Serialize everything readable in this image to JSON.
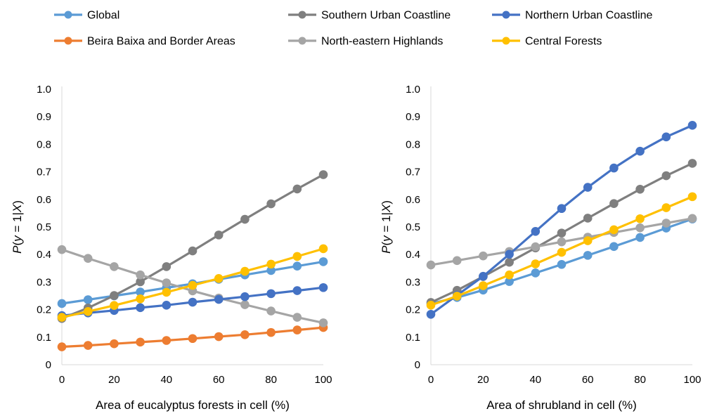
{
  "chart_data": [
    {
      "type": "line",
      "xlabel": "Area of eucalyptus forests in cell (%)",
      "ylabel": "P(y = 1|X)",
      "xlim": [
        0,
        100
      ],
      "ylim": [
        0,
        1.0
      ],
      "x_ticks": [
        "0",
        "20",
        "40",
        "60",
        "80",
        "100"
      ],
      "y_ticks": [
        "0",
        "0.1",
        "0.2",
        "0.3",
        "0.4",
        "0.5",
        "0.6",
        "0.7",
        "0.8",
        "0.9",
        "1.0"
      ],
      "x": [
        0,
        10,
        20,
        30,
        40,
        50,
        60,
        70,
        80,
        90,
        100
      ],
      "grid": false,
      "series": [
        {
          "name": "Global",
          "color": "#5B9BD5",
          "values": [
            0.222,
            0.236,
            0.25,
            0.264,
            0.279,
            0.294,
            0.31,
            0.326,
            0.342,
            0.358,
            0.374
          ]
        },
        {
          "name": "Beira Baixa and Border Areas",
          "color": "#ED7D31",
          "values": [
            0.065,
            0.07,
            0.076,
            0.082,
            0.088,
            0.095,
            0.102,
            0.109,
            0.117,
            0.126,
            0.135
          ]
        },
        {
          "name": "Southern Urban Coastline",
          "color": "#7F7F7F",
          "values": [
            0.168,
            0.206,
            0.251,
            0.301,
            0.356,
            0.413,
            0.471,
            0.528,
            0.584,
            0.638,
            0.69
          ]
        },
        {
          "name": "North-eastern Highlands",
          "color": "#A5A5A5",
          "values": [
            0.418,
            0.386,
            0.356,
            0.326,
            0.297,
            0.268,
            0.242,
            0.218,
            0.195,
            0.172,
            0.152
          ]
        },
        {
          "name": "Northern Urban Coastline",
          "color": "#4472C4",
          "values": [
            0.178,
            0.188,
            0.197,
            0.207,
            0.216,
            0.227,
            0.237,
            0.247,
            0.258,
            0.269,
            0.28
          ]
        },
        {
          "name": "Central Forests",
          "color": "#FFC000",
          "values": [
            0.172,
            0.193,
            0.215,
            0.239,
            0.263,
            0.288,
            0.313,
            0.339,
            0.365,
            0.393,
            0.421
          ]
        }
      ]
    },
    {
      "type": "line",
      "xlabel": "Area of shrubland in cell (%)",
      "ylabel": "P(y = 1|X)",
      "xlim": [
        0,
        100
      ],
      "ylim": [
        0,
        1.0
      ],
      "x_ticks": [
        "0",
        "20",
        "40",
        "60",
        "80",
        "100"
      ],
      "y_ticks": [
        "0",
        "0.1",
        "0.2",
        "0.3",
        "0.4",
        "0.5",
        "0.6",
        "0.7",
        "0.8",
        "0.9",
        "1.0"
      ],
      "x": [
        0,
        10,
        20,
        30,
        40,
        50,
        60,
        70,
        80,
        90,
        100
      ],
      "grid": false,
      "series": [
        {
          "name": "Global",
          "color": "#5B9BD5",
          "values": [
            0.222,
            0.244,
            0.271,
            0.302,
            0.333,
            0.364,
            0.397,
            0.429,
            0.462,
            0.496,
            0.529
          ]
        },
        {
          "name": "Southern Urban Coastline",
          "color": "#7F7F7F",
          "values": [
            0.226,
            0.27,
            0.32,
            0.372,
            0.424,
            0.478,
            0.532,
            0.585,
            0.637,
            0.686,
            0.731
          ]
        },
        {
          "name": "North-eastern Highlands",
          "color": "#A5A5A5",
          "values": [
            0.362,
            0.378,
            0.395,
            0.411,
            0.428,
            0.446,
            0.463,
            0.48,
            0.497,
            0.514,
            0.531
          ]
        },
        {
          "name": "Northern Urban Coastline",
          "color": "#4472C4",
          "values": [
            0.183,
            0.252,
            0.321,
            0.401,
            0.484,
            0.567,
            0.644,
            0.714,
            0.775,
            0.827,
            0.869
          ]
        },
        {
          "name": "Central Forests",
          "color": "#FFC000",
          "values": [
            0.216,
            0.249,
            0.287,
            0.326,
            0.366,
            0.408,
            0.45,
            0.49,
            0.53,
            0.57,
            0.61
          ]
        }
      ]
    }
  ],
  "legend": {
    "placement": "top",
    "entries": [
      {
        "label": "Global",
        "color": "#5B9BD5"
      },
      {
        "label": "Southern Urban Coastline",
        "color": "#7F7F7F"
      },
      {
        "label": "Northern Urban Coastline",
        "color": "#4472C4"
      },
      {
        "label": "Beira Baixa and Border Areas",
        "color": "#ED7D31"
      },
      {
        "label": "North-eastern Highlands",
        "color": "#A5A5A5"
      },
      {
        "label": "Central Forests",
        "color": "#FFC000"
      }
    ]
  }
}
